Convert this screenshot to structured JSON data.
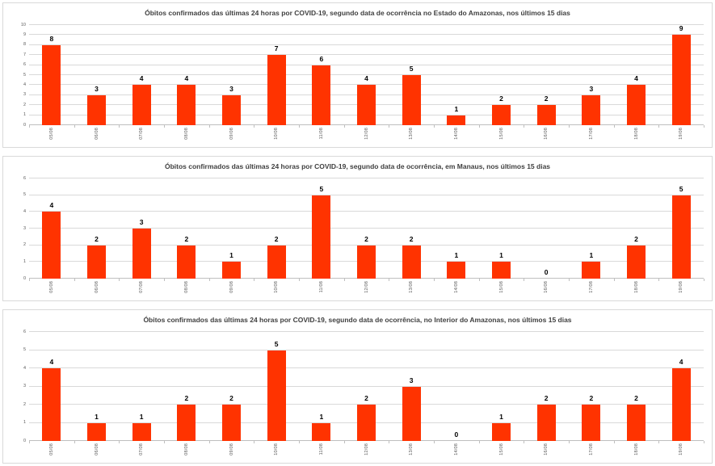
{
  "page": {
    "background": "#FFFFFF"
  },
  "colors": {
    "bar": "#FF3300",
    "gridline": "#D9D9D9",
    "axis_line": "#BFBFBF",
    "tick_label": "#595959",
    "value_label": "#000000",
    "title": "#3F3F3F",
    "panel_border": "#D9D9D9"
  },
  "chart_data": [
    {
      "type": "bar",
      "title": "Óbitos confirmados das últimas 24 horas por COVID-19, segundo data de ocorrência no Estado do Amazonas, nos últimos 15 dias",
      "categories": [
        "05/08",
        "06/08",
        "07/08",
        "08/08",
        "09/08",
        "10/08",
        "11/08",
        "12/08",
        "13/08",
        "14/08",
        "15/08",
        "16/08",
        "17/08",
        "18/08",
        "19/08"
      ],
      "values": [
        8,
        3,
        4,
        4,
        3,
        7,
        6,
        4,
        5,
        1,
        2,
        2,
        3,
        4,
        9
      ],
      "xlabel": "",
      "ylabel": "",
      "ylim": [
        0,
        10
      ],
      "ytick_step": 1,
      "grid": true,
      "legend": "none",
      "data_labels": true,
      "bar_color": "#FF3300"
    },
    {
      "type": "bar",
      "title": "Óbitos confirmados das últimas 24 horas por COVID-19, segundo data de ocorrência, em Manaus, nos últimos 15 dias",
      "categories": [
        "05/08",
        "06/08",
        "07/08",
        "08/08",
        "09/08",
        "10/08",
        "11/08",
        "12/08",
        "13/08",
        "14/08",
        "15/08",
        "16/08",
        "17/08",
        "18/08",
        "19/08"
      ],
      "values": [
        4,
        2,
        3,
        2,
        1,
        2,
        5,
        2,
        2,
        1,
        1,
        0,
        1,
        2,
        5
      ],
      "xlabel": "",
      "ylabel": "",
      "ylim": [
        0,
        6
      ],
      "ytick_step": 1,
      "grid": true,
      "legend": "none",
      "data_labels": true,
      "bar_color": "#FF3300"
    },
    {
      "type": "bar",
      "title": "Óbitos confirmados das últimas 24 horas por COVID-19, segundo data de ocorrência, no Interior do Amazonas, nos últimos 15 dias",
      "categories": [
        "05/08",
        "06/08",
        "07/08",
        "08/08",
        "09/08",
        "10/08",
        "11/08",
        "12/08",
        "13/08",
        "14/08",
        "15/08",
        "16/08",
        "17/08",
        "18/08",
        "19/08"
      ],
      "values": [
        4,
        1,
        1,
        2,
        2,
        5,
        1,
        2,
        3,
        0,
        1,
        2,
        2,
        2,
        4
      ],
      "xlabel": "",
      "ylabel": "",
      "ylim": [
        0,
        6
      ],
      "ytick_step": 1,
      "grid": true,
      "legend": "none",
      "data_labels": true,
      "bar_color": "#FF3300"
    }
  ]
}
